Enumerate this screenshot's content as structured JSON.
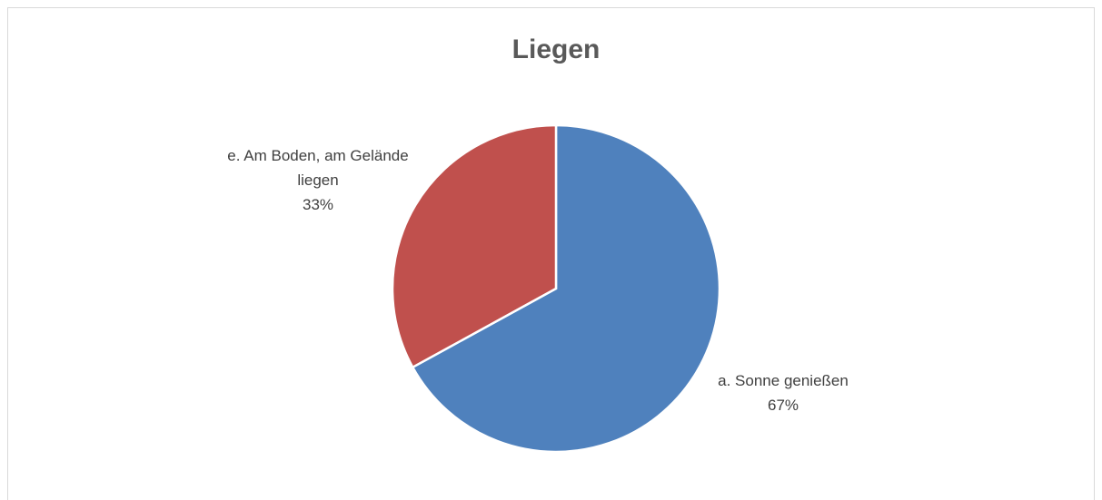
{
  "chart_data": {
    "type": "pie",
    "title": "Liegen",
    "categories": [
      "a. Sonne genießen",
      "e. Am Boden, am Gelände liegen"
    ],
    "values": [
      67,
      33
    ],
    "value_labels": [
      "67%",
      "33%"
    ],
    "colors": [
      "#4f81bd",
      "#c0504d"
    ]
  }
}
